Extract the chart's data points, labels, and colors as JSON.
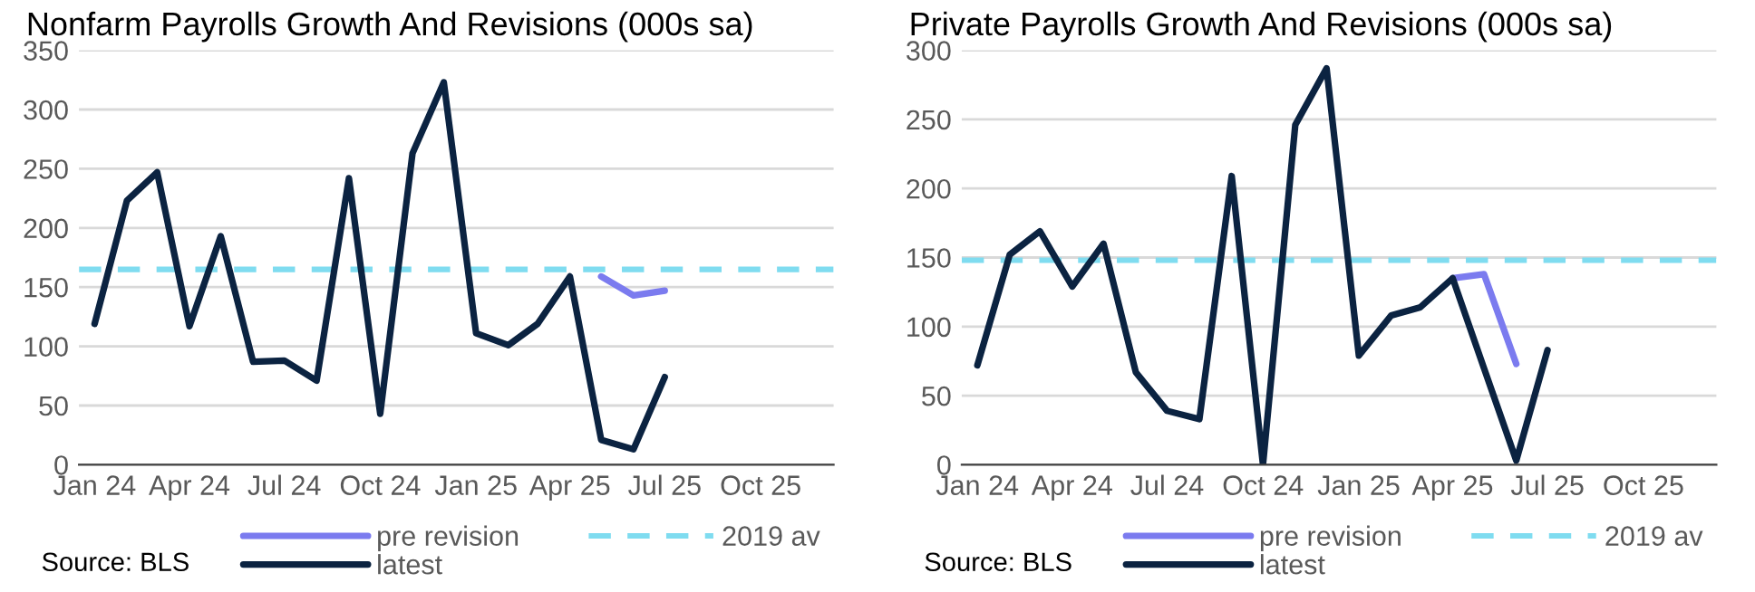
{
  "chart_data": [
    {
      "type": "line",
      "title": "Nonfarm Payrolls Growth And Revisions (000s sa)",
      "x": [
        "2024-01",
        "2024-02",
        "2024-03",
        "2024-04",
        "2024-05",
        "2024-06",
        "2024-07",
        "2024-08",
        "2024-09",
        "2024-10",
        "2024-11",
        "2024-12",
        "2025-01",
        "2025-02",
        "2025-03",
        "2025-04",
        "2025-05",
        "2025-06",
        "2025-07"
      ],
      "series": [
        {
          "name": "pre revision",
          "color": "#7b7bef",
          "x": [
            "2025-05",
            "2025-06",
            "2025-07"
          ],
          "values": [
            159,
            143,
            147
          ]
        },
        {
          "name": "latest",
          "color": "#0b2341",
          "values": [
            119,
            223,
            247,
            117,
            193,
            87,
            88,
            71,
            242,
            43,
            263,
            323,
            111,
            101,
            119,
            159,
            21,
            13,
            74
          ]
        }
      ],
      "ref_lines": [
        {
          "axis": "y",
          "value": 165,
          "label": "2019 av",
          "color": "#7fdcf0",
          "line_style": "dashed"
        }
      ],
      "xlim": [
        "2023-12-17",
        "2025-12-10"
      ],
      "xticks": [
        {
          "value": "2024-01",
          "label": "Jan 24"
        },
        {
          "value": "2024-04",
          "label": "Apr 24"
        },
        {
          "value": "2024-07",
          "label": "Jul 24"
        },
        {
          "value": "2024-10",
          "label": "Oct 24"
        },
        {
          "value": "2025-01",
          "label": "Jan 25"
        },
        {
          "value": "2025-04",
          "label": "Apr 25"
        },
        {
          "value": "2025-07",
          "label": "Jul 25"
        },
        {
          "value": "2025-10",
          "label": "Oct 25"
        }
      ],
      "ylim": [
        0,
        350
      ],
      "yticks": [
        0,
        50,
        100,
        150,
        200,
        250,
        300,
        350
      ],
      "grid": "y",
      "legend": "bottom",
      "line_style": "solid",
      "marker": "none",
      "annotations": [
        "Source: BLS"
      ]
    },
    {
      "type": "line",
      "title": "Private Payrolls Growth And Revisions (000s sa)",
      "x": [
        "2024-01",
        "2024-02",
        "2024-03",
        "2024-04",
        "2024-05",
        "2024-06",
        "2024-07",
        "2024-08",
        "2024-09",
        "2024-10",
        "2024-11",
        "2024-12",
        "2025-01",
        "2025-02",
        "2025-03",
        "2025-04",
        "2025-05",
        "2025-06",
        "2025-07"
      ],
      "series": [
        {
          "name": "pre revision",
          "color": "#7b7bef",
          "x": [
            "2025-04",
            "2025-05",
            "2025-06"
          ],
          "values": [
            135,
            138,
            73
          ]
        },
        {
          "name": "latest",
          "color": "#0b2341",
          "values": [
            72,
            152,
            169,
            129,
            160,
            67,
            39,
            33,
            209,
            0,
            246,
            287,
            79,
            108,
            114,
            135,
            70,
            3,
            83
          ]
        }
      ],
      "ref_lines": [
        {
          "axis": "y",
          "value": 148,
          "label": "2019 av",
          "color": "#7fdcf0",
          "line_style": "dashed"
        }
      ],
      "xlim": [
        "2023-12-17",
        "2025-12-10"
      ],
      "xticks": [
        {
          "value": "2024-01",
          "label": "Jan 24"
        },
        {
          "value": "2024-04",
          "label": "Apr 24"
        },
        {
          "value": "2024-07",
          "label": "Jul 24"
        },
        {
          "value": "2024-10",
          "label": "Oct 24"
        },
        {
          "value": "2025-01",
          "label": "Jan 25"
        },
        {
          "value": "2025-04",
          "label": "Apr 25"
        },
        {
          "value": "2025-07",
          "label": "Jul 25"
        },
        {
          "value": "2025-10",
          "label": "Oct 25"
        }
      ],
      "ylim": [
        0,
        300
      ],
      "yticks": [
        0,
        50,
        100,
        150,
        200,
        250,
        300
      ],
      "grid": "y",
      "legend": "bottom",
      "line_style": "solid",
      "marker": "none",
      "annotations": [
        "Source: BLS"
      ]
    }
  ]
}
